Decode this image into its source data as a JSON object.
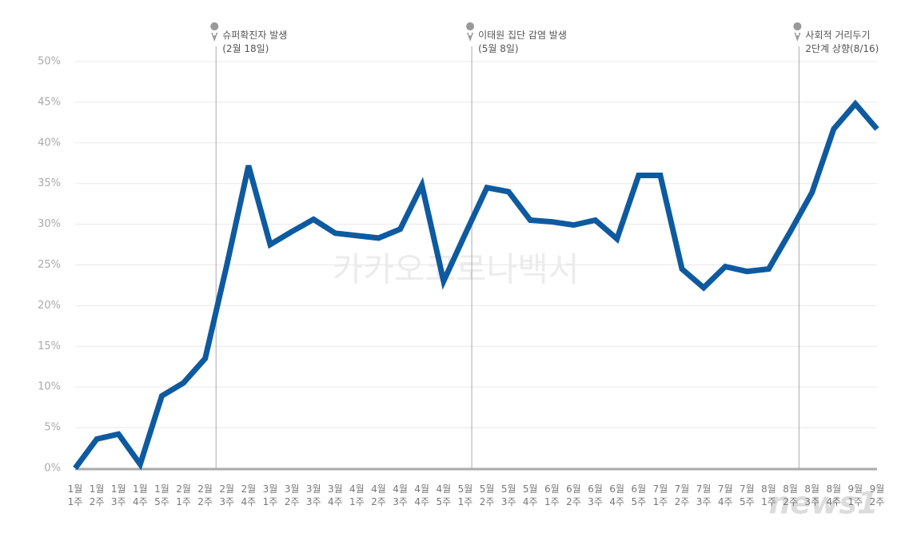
{
  "chart_data": {
    "type": "line",
    "watermark": "카카오코로나백서",
    "logo": "news1",
    "categories": [
      "1월 1주",
      "1월 2주",
      "1월 3주",
      "1월 4주",
      "1월 5주",
      "2월 1주",
      "2월 2주",
      "2월 3주",
      "2월 4주",
      "3월 1주",
      "3월 2주",
      "3월 3주",
      "3월 4주",
      "4월 1주",
      "4월 2주",
      "4월 3주",
      "4월 4주",
      "4월 5주",
      "5월 1주",
      "5월 2주",
      "5월 3주",
      "5월 4주",
      "6월 1주",
      "6월 2주",
      "6월 3주",
      "6월 4주",
      "6월 5주",
      "7월 1주",
      "7월 2주",
      "7월 3주",
      "7월 4주",
      "7월 5주",
      "8월 1주",
      "8월 2주",
      "8월 3주",
      "8월 4주",
      "9월 1주",
      "9월 2주"
    ],
    "values": [
      0,
      3.6,
      4.2,
      0.5,
      8.9,
      10.5,
      13.5,
      25,
      37.2,
      27.5,
      29.1,
      30.6,
      28.9,
      28.6,
      28.3,
      29.4,
      34.8,
      23,
      28.8,
      34.5,
      34,
      30.5,
      30.3,
      29.9,
      30.5,
      28.2,
      36,
      36,
      24.5,
      22.2,
      24.8,
      24.2,
      24.5,
      29.1,
      33.9,
      41.7,
      44.8,
      41.7
    ],
    "color": "#0e5aa0",
    "ylim": [
      0,
      50
    ],
    "yticks": [
      {
        "value": 0,
        "label": "0%"
      },
      {
        "value": 5,
        "label": "5%"
      },
      {
        "value": 10,
        "label": "10%"
      },
      {
        "value": 15,
        "label": "15%"
      },
      {
        "value": 20,
        "label": "20%"
      },
      {
        "value": 25,
        "label": "25%"
      },
      {
        "value": 30,
        "label": "30%"
      },
      {
        "value": 35,
        "label": "35%"
      },
      {
        "value": 40,
        "label": "40%"
      },
      {
        "value": 45,
        "label": "45%"
      },
      {
        "value": 50,
        "label": "50%"
      }
    ],
    "grid": true,
    "annotations": [
      {
        "lines": [
          "슈퍼확진자 발생",
          "(2월 18일)"
        ]
      },
      {
        "lines": [
          "이태원 집단 감염 발생",
          "(5월 8일)"
        ]
      },
      {
        "lines": [
          "사회적 거리두기",
          "2단계 상향(8/16)"
        ]
      }
    ]
  }
}
